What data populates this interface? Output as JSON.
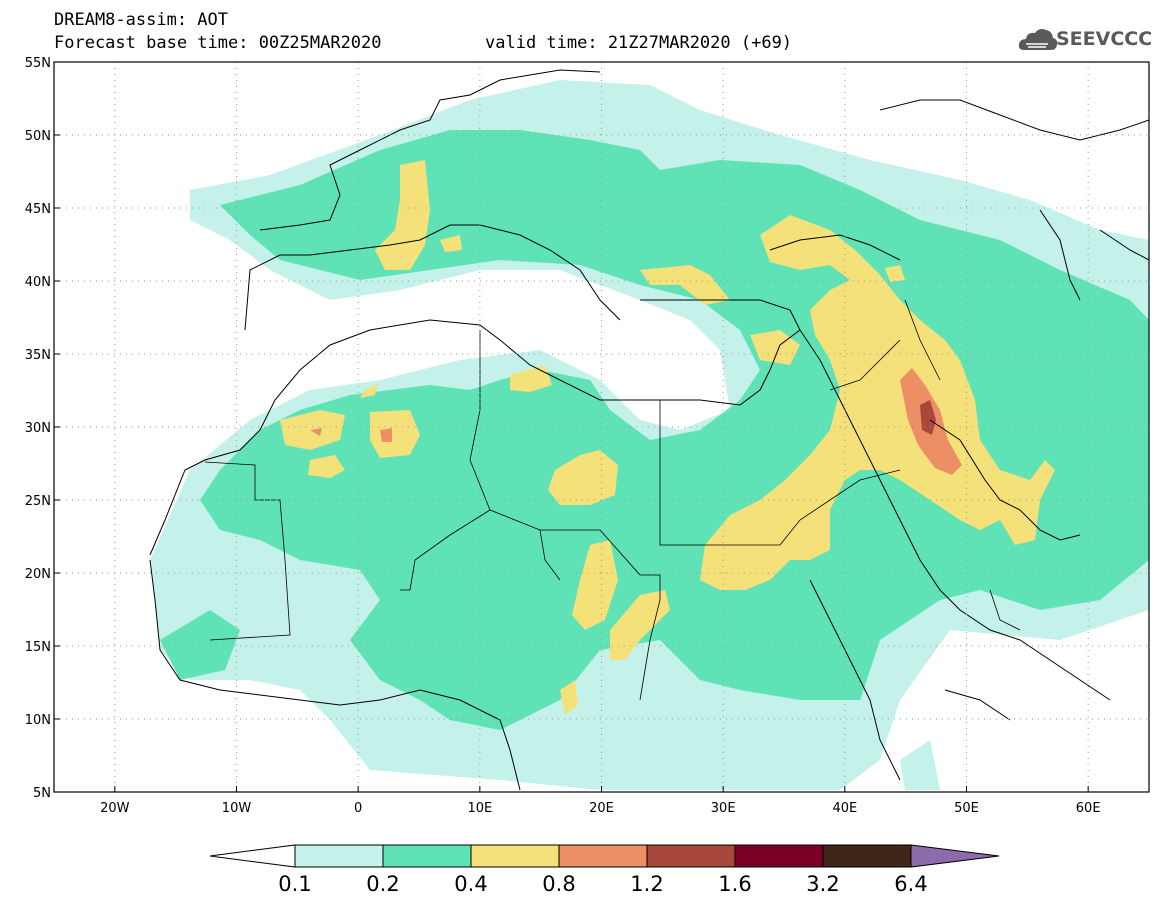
{
  "header": {
    "title": "DREAM8-assim: AOT",
    "base_time": "Forecast base time: 00Z25MAR2020",
    "valid_time": "valid time: 21Z27MAR2020 (+69)"
  },
  "logo": {
    "text": "SEEVCCC",
    "icon": "cloud-icon"
  },
  "map": {
    "lon_range": [
      -25,
      65
    ],
    "lat_range": [
      5,
      55
    ],
    "lon_ticks": [
      {
        "value": -20,
        "label": "20W"
      },
      {
        "value": -10,
        "label": "10W"
      },
      {
        "value": 0,
        "label": "0"
      },
      {
        "value": 10,
        "label": "10E"
      },
      {
        "value": 20,
        "label": "20E"
      },
      {
        "value": 30,
        "label": "30E"
      },
      {
        "value": 40,
        "label": "40E"
      },
      {
        "value": 50,
        "label": "50E"
      },
      {
        "value": 60,
        "label": "60E"
      }
    ],
    "lat_ticks": [
      {
        "value": 55,
        "label": "55N"
      },
      {
        "value": 50,
        "label": "50N"
      },
      {
        "value": 45,
        "label": "45N"
      },
      {
        "value": 40,
        "label": "40N"
      },
      {
        "value": 35,
        "label": "35N"
      },
      {
        "value": 30,
        "label": "30N"
      },
      {
        "value": 25,
        "label": "25N"
      },
      {
        "value": 20,
        "label": "20N"
      },
      {
        "value": 15,
        "label": "15N"
      },
      {
        "value": 10,
        "label": "10N"
      },
      {
        "value": 5,
        "label": "5N"
      }
    ],
    "grid": true
  },
  "colorbar": {
    "levels": [
      "0.1",
      "0.2",
      "0.4",
      "0.8",
      "1.2",
      "1.6",
      "3.2",
      "6.4"
    ],
    "colors": [
      "#c4f1e9",
      "#5ee2b6",
      "#f5e17a",
      "#ec8f65",
      "#a8473a",
      "#7a0025",
      "#3e2618",
      "#8d6aa9"
    ]
  }
}
